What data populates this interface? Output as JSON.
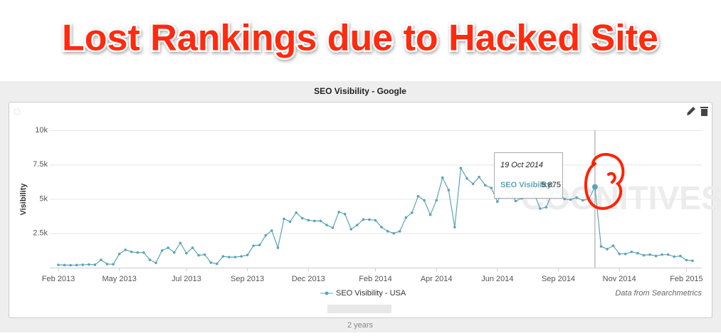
{
  "heading": "Lost Rankings due to Hacked Site",
  "footer": "2 years",
  "chart_data": {
    "type": "line",
    "title": "SEO Visibility - Google",
    "y_label": "Visibility",
    "watermark": "COGNITIVESEO",
    "credit": "Data from Searchmetrics",
    "categories": [
      "Feb 2013",
      null,
      null,
      null,
      null,
      null,
      null,
      null,
      null,
      null,
      "May 2013",
      null,
      null,
      null,
      null,
      null,
      null,
      null,
      null,
      null,
      null,
      "Jul 2013",
      null,
      null,
      null,
      null,
      null,
      null,
      null,
      null,
      null,
      "Sep 2013",
      null,
      null,
      null,
      null,
      null,
      null,
      null,
      null,
      null,
      "Dec 2013",
      null,
      null,
      null,
      null,
      null,
      null,
      null,
      null,
      null,
      null,
      "Feb 2014",
      null,
      null,
      null,
      null,
      null,
      null,
      null,
      null,
      null,
      "Apr 2014",
      null,
      null,
      null,
      null,
      null,
      null,
      null,
      null,
      null,
      "Jun 2014",
      null,
      null,
      null,
      null,
      null,
      null,
      null,
      null,
      null,
      "Sep 2014",
      null,
      null,
      null,
      null,
      null,
      null,
      null,
      null,
      null,
      "Nov 2014",
      null,
      null,
      null,
      null,
      null,
      null,
      null,
      null,
      null,
      null,
      "Feb 2015",
      null
    ],
    "series": [
      {
        "name": "SEO Visibility - USA",
        "color": "#5ba4b8",
        "values": [
          200,
          190,
          180,
          190,
          210,
          230,
          210,
          570,
          260,
          250,
          1000,
          1300,
          1150,
          1100,
          1100,
          570,
          350,
          1250,
          1450,
          1100,
          1800,
          1050,
          1450,
          900,
          950,
          370,
          280,
          820,
          770,
          770,
          820,
          920,
          1600,
          1650,
          2350,
          2700,
          1450,
          3550,
          3350,
          4000,
          3600,
          3450,
          3400,
          3400,
          3100,
          2900,
          4050,
          3900,
          2800,
          3100,
          3500,
          3500,
          3450,
          2950,
          2650,
          2500,
          2650,
          3650,
          4000,
          5200,
          4900,
          3850,
          4900,
          6550,
          5650,
          2950,
          7250,
          6500,
          6100,
          6600,
          6000,
          5800,
          4800,
          5600,
          5500,
          4850,
          5050,
          5600,
          5450,
          4300,
          4400,
          5450,
          5450,
          5000,
          4950,
          5100,
          4900,
          5000,
          5875,
          1550,
          1350,
          1600,
          1000,
          1000,
          1150,
          1050,
          900,
          950,
          850,
          950,
          950,
          800,
          850,
          550,
          500
        ]
      }
    ],
    "ylim": [
      0,
      10000
    ],
    "yticks": [
      {
        "value": 2500,
        "label": "2.5k"
      },
      {
        "value": 5000,
        "label": "5k"
      },
      {
        "value": 7500,
        "label": "7.5k"
      },
      {
        "value": 10000,
        "label": "10k"
      }
    ],
    "grid": true,
    "tooltip": {
      "date": "19 Oct 2014",
      "label": "SEO Visibility:",
      "value_label": "5.875"
    }
  }
}
